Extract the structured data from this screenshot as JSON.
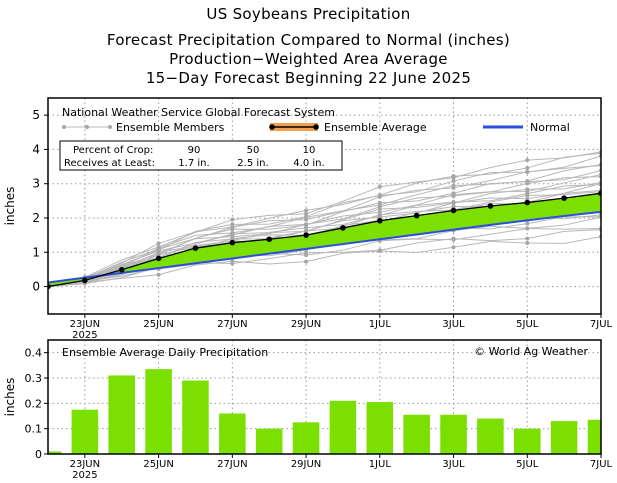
{
  "titles": {
    "line1": "US Soybeans Precipitation",
    "line2": "Forecast Precipitation Compared to Normal (inches)",
    "line3": "Production−Weighted Area Average",
    "line4": "15−Day Forecast Beginning 22 June 2025"
  },
  "colors": {
    "ensemble_fill": "#7be000",
    "normal_line": "#2a4fe0",
    "members": "#a6a6a6",
    "avg_legend_halo": "#f0a050"
  },
  "chart_data": [
    {
      "type": "line",
      "title": "",
      "ylabel": "inches",
      "ylim": [
        -0.8,
        5.5
      ],
      "yticks": [
        0,
        1,
        2,
        3,
        4,
        5
      ],
      "xlim": [
        22,
        37
      ],
      "xticks": [
        {
          "day": 23,
          "label": "23JUN",
          "sub": "2025"
        },
        {
          "day": 25,
          "label": "25JUN"
        },
        {
          "day": 27,
          "label": "27JUN"
        },
        {
          "day": 29,
          "label": "29JUN"
        },
        {
          "day": 31,
          "label": "1JUL"
        },
        {
          "day": 33,
          "label": "3JUL"
        },
        {
          "day": 35,
          "label": "5JUL"
        },
        {
          "day": 37,
          "label": "7JUL"
        }
      ],
      "legend": {
        "source": "National Weather Service Global Forecast System",
        "members": "Ensemble Members",
        "average": "Ensemble Average",
        "normal": "Normal"
      },
      "crop_box": {
        "row1_label": "Percent of Crop:",
        "row1_values": [
          "90",
          "50",
          "10"
        ],
        "row2_label": "Receives at Least:",
        "row2_values": [
          "1.7 in.",
          "2.5 in.",
          "4.0 in."
        ]
      },
      "x": [
        22,
        23,
        24,
        25,
        26,
        27,
        28,
        29,
        30,
        31,
        32,
        33,
        34,
        35,
        36,
        37
      ],
      "series": [
        {
          "name": "Ensemble Average",
          "values": [
            0,
            0.18,
            0.49,
            0.82,
            1.12,
            1.28,
            1.38,
            1.5,
            1.71,
            1.92,
            2.07,
            2.22,
            2.35,
            2.45,
            2.58,
            2.72
          ]
        },
        {
          "name": "Normal",
          "values": [
            0.12,
            0.26,
            0.4,
            0.54,
            0.68,
            0.82,
            0.96,
            1.1,
            1.24,
            1.38,
            1.52,
            1.66,
            1.8,
            1.93,
            2.06,
            2.18
          ]
        }
      ],
      "members_final": [
        1.42,
        1.62,
        1.78,
        1.95,
        2.05,
        2.15,
        2.25,
        2.35,
        2.45,
        2.55,
        2.62,
        2.7,
        2.78,
        2.85,
        2.92,
        3.0,
        3.08,
        3.18,
        3.28,
        3.38,
        3.5,
        3.62,
        3.75,
        3.88,
        4.0
      ]
    },
    {
      "type": "bar",
      "title": "Ensemble Average Daily Precipitation",
      "annotation": "© World Ag Weather",
      "ylabel": "inches",
      "ylim": [
        0,
        0.45
      ],
      "yticks": [
        0,
        0.1,
        0.2,
        0.3,
        0.4
      ],
      "ytick_labels": [
        "0",
        "0.1",
        "0.2",
        "0.3",
        "0.4"
      ],
      "x": [
        22,
        23,
        24,
        25,
        26,
        27,
        28,
        29,
        30,
        31,
        32,
        33,
        34,
        35,
        36,
        37
      ],
      "values": [
        0.01,
        0.175,
        0.31,
        0.335,
        0.29,
        0.16,
        0.1,
        0.125,
        0.21,
        0.205,
        0.155,
        0.155,
        0.14,
        0.1,
        0.13,
        0.135
      ]
    }
  ]
}
